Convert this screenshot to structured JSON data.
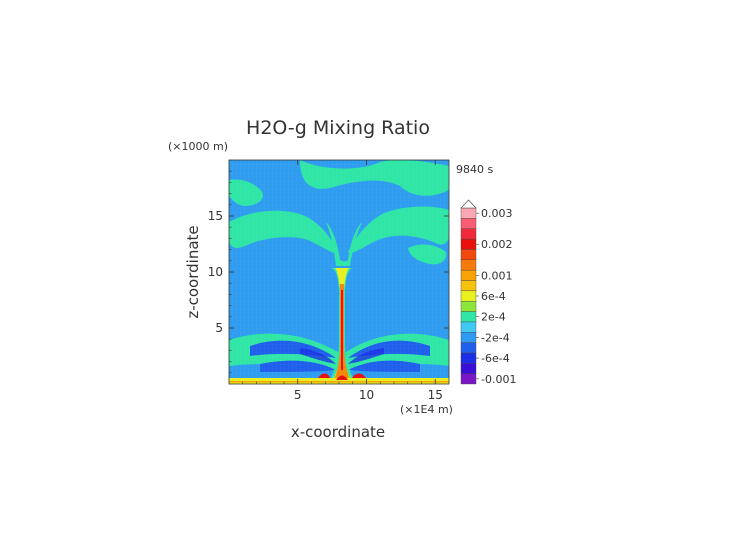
{
  "chart_data": {
    "type": "heatmap",
    "title": "H2O-g Mixing Ratio",
    "time_label": "9840 s",
    "xlabel": "x-coordinate",
    "ylabel": "z-coordinate",
    "x_unit": "(×1E4 m)",
    "y_unit": "(×1000 m)",
    "xlim": [
      0,
      16
    ],
    "ylim": [
      0,
      20
    ],
    "x_ticks": [
      5,
      10,
      15
    ],
    "y_ticks": [
      5,
      10,
      15
    ],
    "x_tick_labels": [
      "5",
      "10",
      "15"
    ],
    "y_tick_labels": [
      "5",
      "10",
      "15"
    ],
    "colorbar": {
      "levels": [
        {
          "value": -0.001,
          "color": "#7b16c4"
        },
        {
          "value": -0.0008,
          "color": "#3a10d8"
        },
        {
          "value": -0.0006,
          "color": "#1c2fe6"
        },
        {
          "value": -0.0004,
          "color": "#1f5fec"
        },
        {
          "value": -0.0002,
          "color": "#2e9af2"
        },
        {
          "value": 0,
          "color": "#3fc8f0"
        },
        {
          "value": 0.0002,
          "color": "#2fe6a6"
        },
        {
          "value": 0.0004,
          "color": "#8ee63a"
        },
        {
          "value": 0.0006,
          "color": "#e8f020"
        },
        {
          "value": 0.0008,
          "color": "#f6c20c"
        },
        {
          "value": 0.001,
          "color": "#f8a108"
        },
        {
          "value": 0.0013,
          "color": "#f77a0a"
        },
        {
          "value": 0.0016,
          "color": "#f24a0c"
        },
        {
          "value": 0.002,
          "color": "#e8100c"
        },
        {
          "value": 0.0023,
          "color": "#f02a3a"
        },
        {
          "value": 0.0026,
          "color": "#f85d74"
        },
        {
          "value": 0.003,
          "color": "#fba7b3"
        }
      ],
      "tick_labels": [
        "-0.001",
        "-6e-4",
        "-2e-4",
        "2e-4",
        "6e-4",
        "0.001",
        "0.002",
        "0.003"
      ],
      "tick_values": [
        -0.001,
        -0.0006,
        -0.0002,
        0.0002,
        0.0006,
        0.001,
        0.002,
        0.003
      ]
    },
    "field_description_colors": {
      "background": "#2f9cf0",
      "light_green": "#2fe6a6",
      "deep_blue": "#1f5fec",
      "plume_yellow": "#e8f020",
      "plume_red": "#e8100c"
    }
  }
}
